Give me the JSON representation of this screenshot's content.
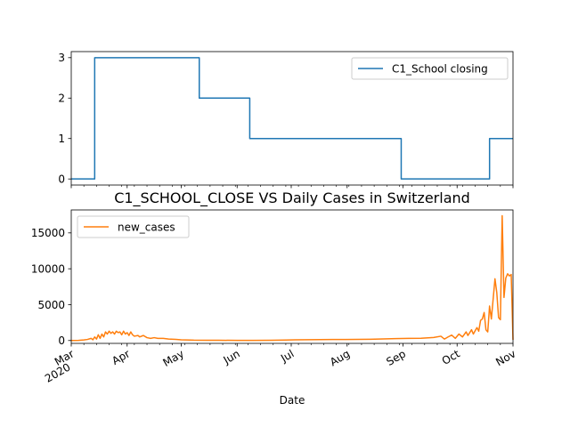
{
  "figure": {
    "xlabel": "Date",
    "x_ticks": [
      {
        "date": "2020-03-01",
        "label": "Mar",
        "sublabel": "2020"
      },
      {
        "date": "2020-04-01",
        "label": "Apr"
      },
      {
        "date": "2020-05-01",
        "label": "May"
      },
      {
        "date": "2020-06-01",
        "label": "Jun"
      },
      {
        "date": "2020-07-01",
        "label": "Jul"
      },
      {
        "date": "2020-08-01",
        "label": "Aug"
      },
      {
        "date": "2020-09-01",
        "label": "Sep"
      },
      {
        "date": "2020-10-01",
        "label": "Oct"
      },
      {
        "date": "2020-11-01",
        "label": "Nov"
      }
    ],
    "xlim": [
      "2020-03-01",
      "2020-11-01"
    ]
  },
  "chart_data": [
    {
      "type": "line",
      "title": "",
      "ylim": [
        -0.15,
        3.15
      ],
      "yticks": [
        0,
        1,
        2,
        3
      ],
      "grid": false,
      "legend": "upper-right",
      "series": [
        {
          "name": "C1_School closing",
          "color": "#1f77b4",
          "step_points": [
            [
              "2020-03-01",
              0
            ],
            [
              "2020-03-14",
              0
            ],
            [
              "2020-03-14",
              3
            ],
            [
              "2020-05-11",
              3
            ],
            [
              "2020-05-11",
              2
            ],
            [
              "2020-06-08",
              2
            ],
            [
              "2020-06-08",
              1
            ],
            [
              "2020-08-31",
              1
            ],
            [
              "2020-08-31",
              0
            ],
            [
              "2020-10-19",
              0
            ],
            [
              "2020-10-19",
              1
            ],
            [
              "2020-11-01",
              1
            ]
          ]
        }
      ]
    },
    {
      "type": "line",
      "title": "C1_SCHOOL_CLOSE VS Daily Cases in Switzerland",
      "ylim": [
        -400,
        18200
      ],
      "yticks": [
        0,
        5000,
        10000,
        15000
      ],
      "grid": false,
      "legend": "upper-left",
      "series": [
        {
          "name": "new_cases",
          "color": "#ff7f0e",
          "points": [
            [
              "2020-03-01",
              10
            ],
            [
              "2020-03-05",
              20
            ],
            [
              "2020-03-08",
              80
            ],
            [
              "2020-03-10",
              150
            ],
            [
              "2020-03-12",
              300
            ],
            [
              "2020-03-13",
              100
            ],
            [
              "2020-03-14",
              500
            ],
            [
              "2020-03-15",
              200
            ],
            [
              "2020-03-16",
              800
            ],
            [
              "2020-03-17",
              300
            ],
            [
              "2020-03-18",
              900
            ],
            [
              "2020-03-19",
              500
            ],
            [
              "2020-03-20",
              1200
            ],
            [
              "2020-03-21",
              900
            ],
            [
              "2020-03-22",
              1300
            ],
            [
              "2020-03-23",
              1000
            ],
            [
              "2020-03-24",
              1200
            ],
            [
              "2020-03-25",
              900
            ],
            [
              "2020-03-26",
              1300
            ],
            [
              "2020-03-27",
              1100
            ],
            [
              "2020-03-28",
              1200
            ],
            [
              "2020-03-29",
              800
            ],
            [
              "2020-03-30",
              1300
            ],
            [
              "2020-03-31",
              900
            ],
            [
              "2020-04-01",
              1100
            ],
            [
              "2020-04-02",
              700
            ],
            [
              "2020-04-03",
              1200
            ],
            [
              "2020-04-04",
              800
            ],
            [
              "2020-04-05",
              600
            ],
            [
              "2020-04-07",
              700
            ],
            [
              "2020-04-08",
              500
            ],
            [
              "2020-04-10",
              700
            ],
            [
              "2020-04-12",
              400
            ],
            [
              "2020-04-14",
              300
            ],
            [
              "2020-04-16",
              400
            ],
            [
              "2020-04-18",
              300
            ],
            [
              "2020-04-21",
              300
            ],
            [
              "2020-04-24",
              200
            ],
            [
              "2020-04-28",
              150
            ],
            [
              "2020-05-01",
              100
            ],
            [
              "2020-05-08",
              50
            ],
            [
              "2020-05-15",
              40
            ],
            [
              "2020-05-22",
              30
            ],
            [
              "2020-06-01",
              20
            ],
            [
              "2020-06-10",
              20
            ],
            [
              "2020-06-20",
              30
            ],
            [
              "2020-06-28",
              60
            ],
            [
              "2020-07-03",
              90
            ],
            [
              "2020-07-10",
              110
            ],
            [
              "2020-07-17",
              120
            ],
            [
              "2020-07-24",
              140
            ],
            [
              "2020-07-31",
              140
            ],
            [
              "2020-08-07",
              160
            ],
            [
              "2020-08-14",
              180
            ],
            [
              "2020-08-21",
              220
            ],
            [
              "2020-08-28",
              260
            ],
            [
              "2020-09-04",
              300
            ],
            [
              "2020-09-11",
              320
            ],
            [
              "2020-09-18",
              420
            ],
            [
              "2020-09-22",
              600
            ],
            [
              "2020-09-24",
              200
            ],
            [
              "2020-09-26",
              500
            ],
            [
              "2020-09-28",
              750
            ],
            [
              "2020-09-30",
              300
            ],
            [
              "2020-10-02",
              900
            ],
            [
              "2020-10-04",
              500
            ],
            [
              "2020-10-06",
              1200
            ],
            [
              "2020-10-07",
              700
            ],
            [
              "2020-10-09",
              1500
            ],
            [
              "2020-10-10",
              900
            ],
            [
              "2020-10-12",
              1800
            ],
            [
              "2020-10-13",
              1300
            ],
            [
              "2020-10-14",
              2800
            ],
            [
              "2020-10-15",
              3000
            ],
            [
              "2020-10-16",
              3900
            ],
            [
              "2020-10-17",
              1500
            ],
            [
              "2020-10-18",
              1200
            ],
            [
              "2020-10-19",
              4800
            ],
            [
              "2020-10-20",
              3000
            ],
            [
              "2020-10-21",
              5800
            ],
            [
              "2020-10-22",
              8600
            ],
            [
              "2020-10-23",
              6700
            ],
            [
              "2020-10-24",
              3200
            ],
            [
              "2020-10-25",
              2900
            ],
            [
              "2020-10-26",
              17400
            ],
            [
              "2020-10-27",
              6000
            ],
            [
              "2020-10-28",
              8700
            ],
            [
              "2020-10-29",
              9300
            ],
            [
              "2020-10-30",
              9000
            ],
            [
              "2020-10-31",
              9200
            ],
            [
              "2020-11-01",
              100
            ]
          ]
        }
      ]
    }
  ]
}
